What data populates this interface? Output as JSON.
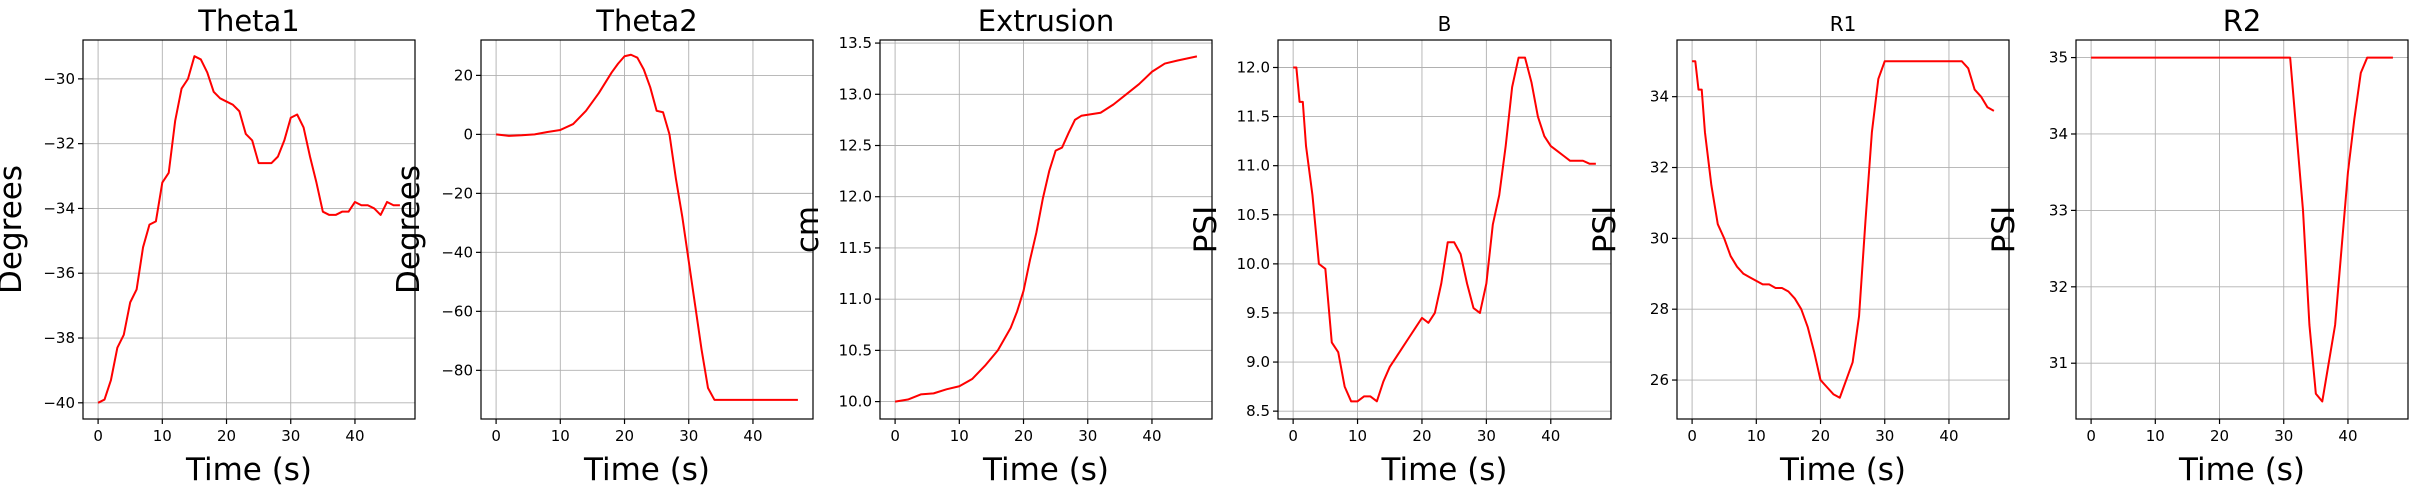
{
  "colors": {
    "line": "#ff0000",
    "grid": "#b0b0b0",
    "axes": "#000000"
  },
  "chart_data": [
    {
      "type": "line",
      "title": "Theta1",
      "title_size": "large",
      "xlabel": "Time (s)",
      "ylabel": "Degrees",
      "xlim": [
        -2.35,
        49.35
      ],
      "ylim": [
        -40.5,
        -28.8
      ],
      "xticks": [
        0,
        10,
        20,
        30,
        40
      ],
      "xtick_labels": [
        "0",
        "10",
        "20",
        "30",
        "40"
      ],
      "yticks": [
        -40,
        -38,
        -36,
        -34,
        -32,
        -30
      ],
      "ytick_labels": [
        "−40",
        "−38",
        "−36",
        "−34",
        "−32",
        "−30"
      ],
      "grid": true,
      "x": [
        0,
        1,
        2,
        3,
        4,
        5,
        6,
        7,
        8,
        9,
        10,
        11,
        12,
        13,
        14,
        15,
        16,
        17,
        18,
        19,
        20,
        21,
        22,
        23,
        24,
        25,
        26,
        27,
        28,
        29,
        30,
        31,
        32,
        33,
        34,
        35,
        36,
        37,
        38,
        39,
        40,
        41,
        42,
        43,
        44,
        45,
        46,
        47
      ],
      "y": [
        -40,
        -39.9,
        -39.3,
        -38.3,
        -37.9,
        -36.9,
        -36.5,
        -35.2,
        -34.5,
        -34.4,
        -33.2,
        -32.9,
        -31.3,
        -30.3,
        -30,
        -29.3,
        -29.4,
        -29.8,
        -30.4,
        -30.6,
        -30.7,
        -30.8,
        -31,
        -31.7,
        -31.9,
        -32.6,
        -32.6,
        -32.6,
        -32.4,
        -31.9,
        -31.2,
        -31.1,
        -31.5,
        -32.4,
        -33.2,
        -34.1,
        -34.2,
        -34.2,
        -34.1,
        -34.1,
        -33.8,
        -33.9,
        -33.9,
        -34,
        -34.2,
        -33.8,
        -33.9,
        -33.9
      ]
    },
    {
      "type": "line",
      "title": "Theta2",
      "title_size": "large",
      "xlabel": "Time (s)",
      "ylabel": "Degrees",
      "xlim": [
        -2.35,
        49.35
      ],
      "ylim": [
        -96.5,
        32
      ],
      "xticks": [
        0,
        10,
        20,
        30,
        40
      ],
      "xtick_labels": [
        "0",
        "10",
        "20",
        "30",
        "40"
      ],
      "yticks": [
        -80,
        -60,
        -40,
        -20,
        0,
        20
      ],
      "ytick_labels": [
        "−80",
        "−60",
        "−40",
        "−20",
        "0",
        "20"
      ],
      "grid": true,
      "x": [
        0,
        2,
        4,
        6,
        8,
        10,
        12,
        14,
        16,
        18,
        19,
        20,
        21,
        22,
        23,
        24,
        25,
        26,
        27,
        28,
        29,
        30,
        31,
        32,
        33,
        34,
        36,
        38,
        40,
        42,
        44,
        47
      ],
      "y": [
        0,
        -0.5,
        -0.3,
        0,
        0.8,
        1.5,
        3.5,
        8,
        14,
        21,
        24,
        26.5,
        27,
        26,
        22,
        16,
        8,
        7.5,
        0,
        -15,
        -28,
        -43,
        -58,
        -73,
        -86,
        -90,
        -90,
        -90,
        -90,
        -90,
        -90,
        -90
      ]
    },
    {
      "type": "line",
      "title": "Extrusion",
      "title_size": "large",
      "xlabel": "Time (s)",
      "ylabel": "cm",
      "xlim": [
        -2.35,
        49.35
      ],
      "ylim": [
        9.83,
        13.53
      ],
      "xticks": [
        0,
        10,
        20,
        30,
        40
      ],
      "xtick_labels": [
        "0",
        "10",
        "20",
        "30",
        "40"
      ],
      "yticks": [
        10.0,
        10.5,
        11.0,
        11.5,
        12.0,
        12.5,
        13.0,
        13.5
      ],
      "ytick_labels": [
        "10.0",
        "10.5",
        "11.0",
        "11.5",
        "12.0",
        "12.5",
        "13.0",
        "13.5"
      ],
      "grid": true,
      "x": [
        0,
        2,
        4,
        6,
        8,
        10,
        12,
        14,
        16,
        18,
        19,
        20,
        21,
        22,
        23,
        24,
        25,
        26,
        27,
        28,
        29,
        30,
        32,
        34,
        36,
        38,
        40,
        42,
        44,
        47
      ],
      "y": [
        10,
        10.02,
        10.07,
        10.08,
        10.12,
        10.15,
        10.22,
        10.35,
        10.5,
        10.72,
        10.88,
        11.08,
        11.38,
        11.65,
        11.98,
        12.25,
        12.45,
        12.48,
        12.62,
        12.75,
        12.79,
        12.8,
        12.82,
        12.9,
        13,
        13.1,
        13.22,
        13.3,
        13.33,
        13.37
      ]
    },
    {
      "type": "line",
      "title": "B",
      "title_size": "small",
      "xlabel": "Time (s)",
      "ylabel": "PSI",
      "xlim": [
        -2.35,
        49.35
      ],
      "ylim": [
        8.42,
        12.28
      ],
      "xticks": [
        0,
        10,
        20,
        30,
        40
      ],
      "xtick_labels": [
        "0",
        "10",
        "20",
        "30",
        "40"
      ],
      "yticks": [
        8.5,
        9.0,
        9.5,
        10.0,
        10.5,
        11.0,
        11.5,
        12.0
      ],
      "ytick_labels": [
        "8.5",
        "9.0",
        "9.5",
        "10.0",
        "10.5",
        "11.0",
        "11.5",
        "12.0"
      ],
      "grid": true,
      "x": [
        0,
        0.5,
        1,
        1.5,
        2,
        3,
        4,
        5,
        6,
        7,
        8,
        9,
        10,
        11,
        12,
        13,
        14,
        15,
        16,
        17,
        18,
        19,
        20,
        21,
        22,
        23,
        24,
        25,
        26,
        27,
        28,
        29,
        30,
        31,
        32,
        33,
        34,
        35,
        36,
        37,
        38,
        39,
        40,
        41,
        42,
        43,
        44,
        45,
        46,
        47
      ],
      "y": [
        12,
        12,
        11.65,
        11.65,
        11.2,
        10.7,
        10,
        9.95,
        9.2,
        9.1,
        8.75,
        8.6,
        8.6,
        8.65,
        8.65,
        8.6,
        8.8,
        8.95,
        9.05,
        9.15,
        9.25,
        9.35,
        9.45,
        9.4,
        9.5,
        9.8,
        10.22,
        10.22,
        10.1,
        9.8,
        9.55,
        9.5,
        9.8,
        10.4,
        10.7,
        11.2,
        11.8,
        12.1,
        12.1,
        11.85,
        11.5,
        11.3,
        11.2,
        11.15,
        11.1,
        11.05,
        11.05,
        11.05,
        11.02,
        11.02
      ]
    },
    {
      "type": "line",
      "title": "R1",
      "title_size": "small",
      "xlabel": "Time (s)",
      "ylabel": "PSI",
      "xlim": [
        -2.35,
        49.35
      ],
      "ylim": [
        24.9,
        35.6
      ],
      "xticks": [
        0,
        10,
        20,
        30,
        40
      ],
      "xtick_labels": [
        "0",
        "10",
        "20",
        "30",
        "40"
      ],
      "yticks": [
        26,
        28,
        30,
        32,
        34
      ],
      "ytick_labels": [
        "26",
        "28",
        "30",
        "32",
        "34"
      ],
      "grid": true,
      "x": [
        0,
        0.5,
        1,
        1.5,
        2,
        3,
        4,
        5,
        6,
        7,
        8,
        9,
        10,
        11,
        12,
        13,
        14,
        15,
        16,
        17,
        18,
        19,
        20,
        21,
        22,
        23,
        24,
        25,
        26,
        27,
        28,
        29,
        30,
        31,
        32,
        33,
        34,
        35,
        36,
        37,
        38,
        39,
        40,
        41,
        42,
        43,
        44,
        45,
        46,
        47
      ],
      "y": [
        35,
        35,
        34.2,
        34.2,
        33,
        31.5,
        30.4,
        30,
        29.5,
        29.2,
        29,
        28.9,
        28.8,
        28.7,
        28.7,
        28.6,
        28.6,
        28.5,
        28.3,
        28,
        27.5,
        26.8,
        26,
        25.8,
        25.6,
        25.5,
        26,
        26.5,
        27.8,
        30.5,
        33,
        34.5,
        35,
        35,
        35,
        35,
        35,
        35,
        35,
        35,
        35,
        35,
        35,
        35,
        35,
        34.8,
        34.2,
        34,
        33.7,
        33.6
      ]
    },
    {
      "type": "line",
      "title": "R2",
      "title_size": "large",
      "xlabel": "Time (s)",
      "ylabel": "PSI",
      "xlim": [
        -2.35,
        49.35
      ],
      "ylim": [
        30.27,
        35.23
      ],
      "xticks": [
        0,
        10,
        20,
        30,
        40
      ],
      "xtick_labels": [
        "0",
        "10",
        "20",
        "30",
        "40"
      ],
      "yticks": [
        31,
        32,
        33,
        34,
        35
      ],
      "ytick_labels": [
        "31",
        "32",
        "33",
        "34",
        "35"
      ],
      "grid": true,
      "x": [
        0,
        31,
        32,
        33,
        34,
        35,
        36,
        37,
        38,
        39,
        40,
        41,
        42,
        43,
        44,
        47
      ],
      "y": [
        35,
        35,
        34,
        33,
        31.5,
        30.6,
        30.5,
        31,
        31.5,
        32.5,
        33.5,
        34.2,
        34.8,
        35,
        35,
        35
      ]
    }
  ]
}
